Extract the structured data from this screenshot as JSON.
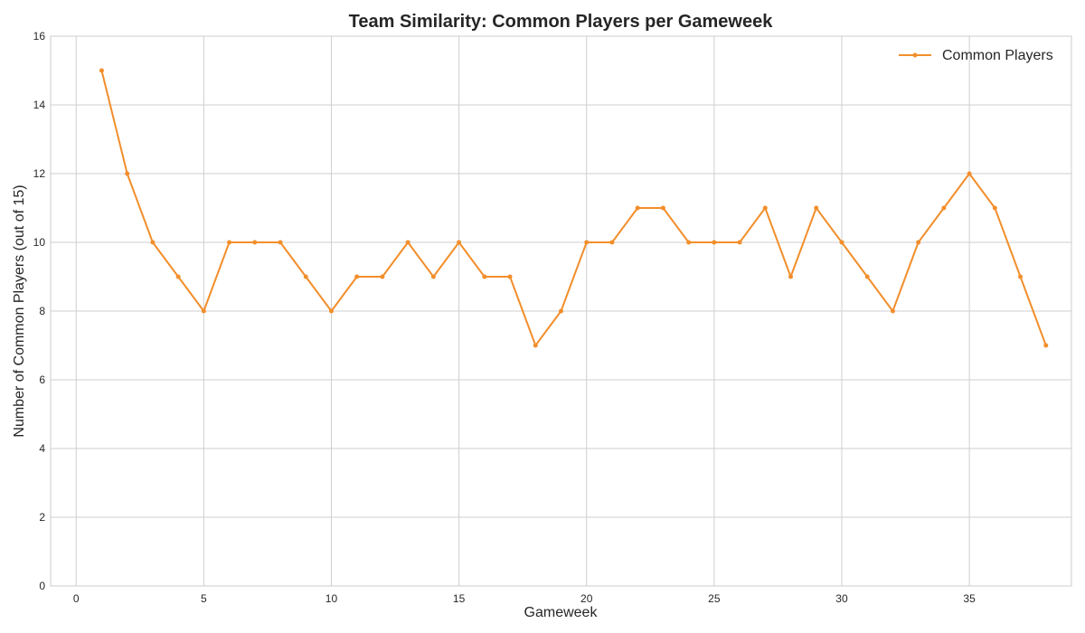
{
  "chart_data": {
    "type": "line",
    "title": "Team Similarity: Common Players per Gameweek",
    "xlabel": "Gameweek",
    "ylabel": "Number of Common Players (out of 15)",
    "xlim": [
      -1,
      39
    ],
    "ylim": [
      0,
      16
    ],
    "xticks": [
      0,
      5,
      10,
      15,
      20,
      25,
      30,
      35
    ],
    "yticks": [
      0,
      2,
      4,
      6,
      8,
      10,
      12,
      14,
      16
    ],
    "grid": true,
    "legend_position": "top-right",
    "series": [
      {
        "name": "Common Players",
        "color": "#f28e2b",
        "marker": "circle",
        "x": [
          1,
          2,
          3,
          4,
          5,
          6,
          7,
          8,
          9,
          10,
          11,
          12,
          13,
          14,
          15,
          16,
          17,
          18,
          19,
          20,
          21,
          22,
          23,
          24,
          25,
          26,
          27,
          28,
          29,
          30,
          31,
          32,
          33,
          34,
          35,
          36,
          37,
          38
        ],
        "y": [
          15,
          12,
          10,
          9,
          8,
          10,
          10,
          10,
          9,
          8,
          9,
          9,
          10,
          9,
          10,
          9,
          9,
          7,
          8,
          10,
          10,
          11,
          11,
          10,
          10,
          10,
          11,
          9,
          11,
          10,
          9,
          8,
          10,
          11,
          12,
          11,
          9,
          7
        ]
      }
    ]
  }
}
